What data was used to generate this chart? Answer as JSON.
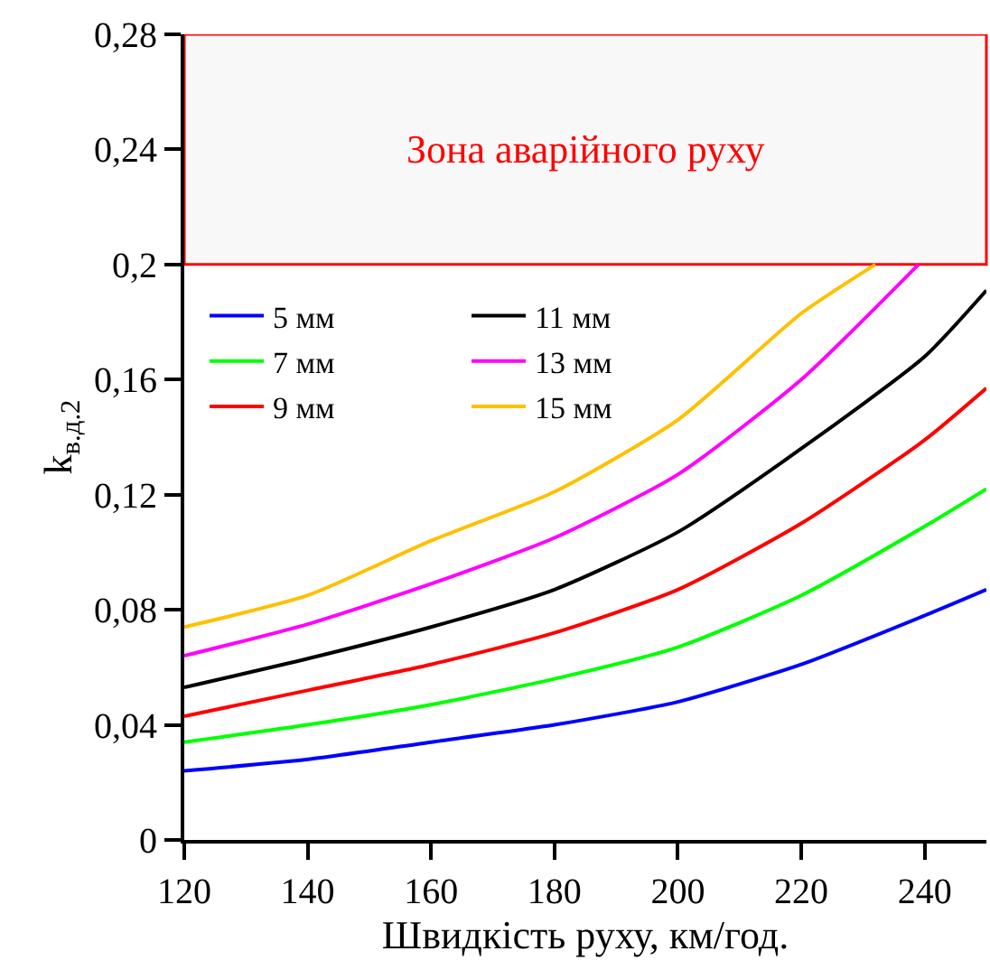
{
  "chart_data": {
    "type": "line",
    "xlabel": "Швидкість руху, км/год.",
    "ylabel": "k$_{в.д.2}$",
    "xlim": [
      120,
      250
    ],
    "xticks": [
      120,
      140,
      160,
      180,
      200,
      220,
      240
    ],
    "ylim": [
      0,
      0.28
    ],
    "yticks": [
      0,
      {
        "value": 0.04,
        "label": "0,04"
      },
      {
        "value": 0.08,
        "label": "0,08"
      },
      {
        "value": 0.12,
        "label": "0,12"
      },
      {
        "value": 0.16,
        "label": "0,16"
      },
      {
        "value": 0.2,
        "label": "0,2"
      },
      {
        "value": 0.24,
        "label": "0,24"
      },
      {
        "value": 0.28,
        "label": "0,28"
      }
    ],
    "grid": false,
    "legend": "top left",
    "marker": "none",
    "line_style": "solid",
    "bands": [
      {
        "axis": "y",
        "from": 0.2,
        "to": 0.28,
        "label": "Зона аварійного руху",
        "color": "#ff0000"
      }
    ],
    "series": [
      {
        "name": "5 мм",
        "color": "#0000ff",
        "x": [
          120,
          140,
          160,
          180,
          200,
          220,
          240,
          250
        ],
        "values": [
          0.024,
          0.028,
          0.034,
          0.04,
          0.048,
          0.061,
          0.078,
          0.087
        ]
      },
      {
        "name": "7 мм",
        "color": "#00ff00",
        "x": [
          120,
          140,
          160,
          180,
          200,
          220,
          240,
          250
        ],
        "values": [
          0.034,
          0.04,
          0.047,
          0.056,
          0.067,
          0.085,
          0.109,
          0.122
        ]
      },
      {
        "name": "9 мм",
        "color": "#ff0000",
        "x": [
          120,
          140,
          160,
          180,
          200,
          220,
          240,
          250
        ],
        "values": [
          0.043,
          0.052,
          0.061,
          0.072,
          0.087,
          0.11,
          0.139,
          0.157
        ]
      },
      {
        "name": "11 мм",
        "color": "#000000",
        "x": [
          120,
          140,
          160,
          180,
          200,
          220,
          240,
          250
        ],
        "values": [
          0.053,
          0.063,
          0.074,
          0.087,
          0.107,
          0.136,
          0.168,
          0.191
        ]
      },
      {
        "name": "13 мм",
        "color": "#ff00ff",
        "x": [
          120,
          140,
          160,
          180,
          200,
          220,
          239
        ],
        "values": [
          0.064,
          0.075,
          0.089,
          0.105,
          0.127,
          0.16,
          0.2
        ]
      },
      {
        "name": "15 мм",
        "color": "#ffc000",
        "x": [
          120,
          140,
          160,
          180,
          200,
          220,
          232
        ],
        "values": [
          0.074,
          0.085,
          0.104,
          0.121,
          0.146,
          0.183,
          0.2
        ]
      }
    ]
  }
}
